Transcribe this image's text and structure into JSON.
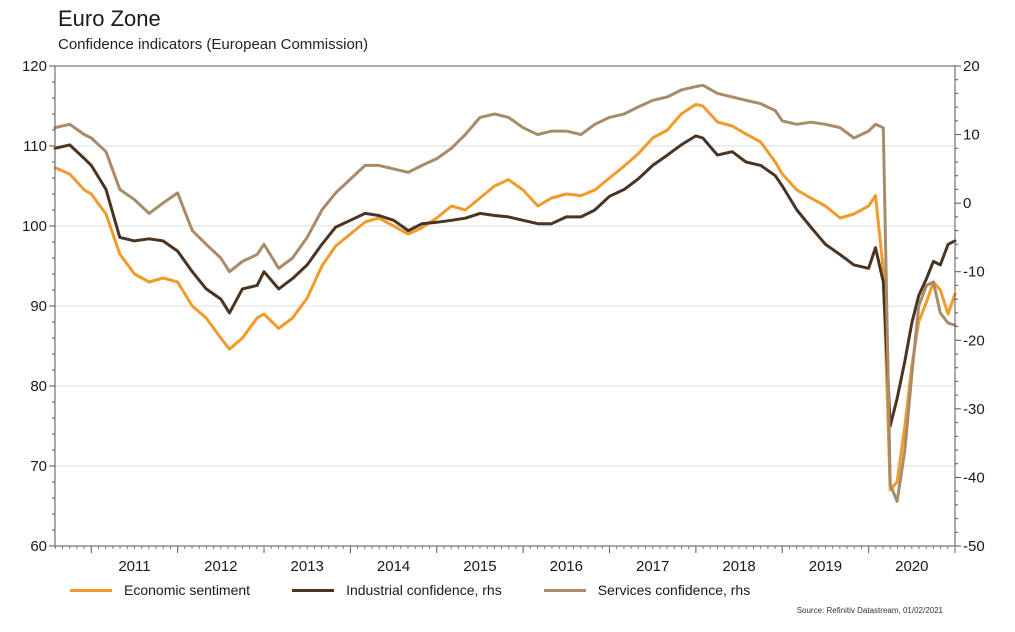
{
  "title": "Euro Zone",
  "subtitle": "Confidence indicators (European Commission)",
  "source": "Source: Refinitiv Datastream, 01/02/2021",
  "chart_data": {
    "type": "line",
    "title": "Euro Zone",
    "subtitle": "Confidence indicators (European Commission)",
    "x_ticks": [
      "2011",
      "2012",
      "2013",
      "2014",
      "2015",
      "2016",
      "2017",
      "2018",
      "2019",
      "2020"
    ],
    "x_range": [
      2010.58,
      2021.0
    ],
    "y_left": {
      "range": [
        60,
        120
      ],
      "ticks": [
        "60",
        "70",
        "80",
        "90",
        "100",
        "110",
        "120"
      ]
    },
    "y_right": {
      "range": [
        -50,
        20
      ],
      "ticks": [
        "-50",
        "-40",
        "-30",
        "-20",
        "-10",
        "0",
        "10",
        "20"
      ]
    },
    "grid": "horizontal",
    "legend_position": "bottom",
    "series": [
      {
        "name": "Economic sentiment",
        "axis": "left",
        "color": "#f39a2c",
        "points": [
          [
            2010.58,
            107.3
          ],
          [
            2010.75,
            106.5
          ],
          [
            2010.92,
            104.5
          ],
          [
            2011.0,
            104.0
          ],
          [
            2011.17,
            101.5
          ],
          [
            2011.33,
            96.5
          ],
          [
            2011.5,
            94.0
          ],
          [
            2011.67,
            93.0
          ],
          [
            2011.83,
            93.5
          ],
          [
            2012.0,
            93.0
          ],
          [
            2012.17,
            90.0
          ],
          [
            2012.33,
            88.5
          ],
          [
            2012.5,
            86.0
          ],
          [
            2012.6,
            84.6
          ],
          [
            2012.75,
            86.0
          ],
          [
            2012.92,
            88.5
          ],
          [
            2013.0,
            89.0
          ],
          [
            2013.17,
            87.2
          ],
          [
            2013.33,
            88.5
          ],
          [
            2013.5,
            91.0
          ],
          [
            2013.67,
            95.0
          ],
          [
            2013.83,
            97.5
          ],
          [
            2014.0,
            99.0
          ],
          [
            2014.17,
            100.5
          ],
          [
            2014.33,
            101.0
          ],
          [
            2014.5,
            100.0
          ],
          [
            2014.67,
            99.0
          ],
          [
            2014.83,
            99.8
          ],
          [
            2015.0,
            101.0
          ],
          [
            2015.17,
            102.5
          ],
          [
            2015.33,
            102.0
          ],
          [
            2015.5,
            103.5
          ],
          [
            2015.67,
            105.0
          ],
          [
            2015.83,
            105.8
          ],
          [
            2016.0,
            104.5
          ],
          [
            2016.17,
            102.5
          ],
          [
            2016.33,
            103.5
          ],
          [
            2016.5,
            104.0
          ],
          [
            2016.67,
            103.8
          ],
          [
            2016.83,
            104.5
          ],
          [
            2017.0,
            106.0
          ],
          [
            2017.17,
            107.5
          ],
          [
            2017.33,
            109.0
          ],
          [
            2017.5,
            111.0
          ],
          [
            2017.67,
            112.0
          ],
          [
            2017.83,
            114.0
          ],
          [
            2018.0,
            115.2
          ],
          [
            2018.08,
            115.0
          ],
          [
            2018.25,
            113.0
          ],
          [
            2018.42,
            112.5
          ],
          [
            2018.58,
            111.5
          ],
          [
            2018.75,
            110.5
          ],
          [
            2018.92,
            108.0
          ],
          [
            2019.0,
            106.5
          ],
          [
            2019.17,
            104.5
          ],
          [
            2019.33,
            103.5
          ],
          [
            2019.5,
            102.5
          ],
          [
            2019.67,
            101.0
          ],
          [
            2019.83,
            101.5
          ],
          [
            2020.0,
            102.5
          ],
          [
            2020.08,
            103.8
          ],
          [
            2020.17,
            94.5
          ],
          [
            2020.25,
            67.0
          ],
          [
            2020.33,
            68.0
          ],
          [
            2020.42,
            75.0
          ],
          [
            2020.5,
            82.5
          ],
          [
            2020.58,
            88.0
          ],
          [
            2020.67,
            90.5
          ],
          [
            2020.75,
            93.0
          ],
          [
            2020.83,
            92.0
          ],
          [
            2020.92,
            89.0
          ],
          [
            2021.0,
            91.5
          ]
        ]
      },
      {
        "name": "Industrial confidence, rhs",
        "axis": "right",
        "color": "#4a3524",
        "points": [
          [
            2010.58,
            8.0
          ],
          [
            2010.75,
            8.5
          ],
          [
            2010.92,
            6.5
          ],
          [
            2011.0,
            5.5
          ],
          [
            2011.17,
            2.0
          ],
          [
            2011.33,
            -5.0
          ],
          [
            2011.5,
            -5.5
          ],
          [
            2011.67,
            -5.2
          ],
          [
            2011.83,
            -5.5
          ],
          [
            2012.0,
            -7.0
          ],
          [
            2012.17,
            -10.0
          ],
          [
            2012.33,
            -12.5
          ],
          [
            2012.5,
            -14.0
          ],
          [
            2012.6,
            -16.0
          ],
          [
            2012.75,
            -12.5
          ],
          [
            2012.92,
            -12.0
          ],
          [
            2013.0,
            -10.0
          ],
          [
            2013.17,
            -12.5
          ],
          [
            2013.33,
            -11.0
          ],
          [
            2013.5,
            -9.0
          ],
          [
            2013.67,
            -6.0
          ],
          [
            2013.83,
            -3.5
          ],
          [
            2014.0,
            -2.5
          ],
          [
            2014.17,
            -1.5
          ],
          [
            2014.33,
            -1.8
          ],
          [
            2014.5,
            -2.5
          ],
          [
            2014.67,
            -4.0
          ],
          [
            2014.83,
            -3.0
          ],
          [
            2015.0,
            -2.8
          ],
          [
            2015.17,
            -2.5
          ],
          [
            2015.33,
            -2.2
          ],
          [
            2015.5,
            -1.5
          ],
          [
            2015.67,
            -1.8
          ],
          [
            2015.83,
            -2.0
          ],
          [
            2016.0,
            -2.5
          ],
          [
            2016.17,
            -3.0
          ],
          [
            2016.33,
            -3.0
          ],
          [
            2016.5,
            -2.0
          ],
          [
            2016.67,
            -2.0
          ],
          [
            2016.83,
            -1.0
          ],
          [
            2017.0,
            1.0
          ],
          [
            2017.17,
            2.0
          ],
          [
            2017.33,
            3.5
          ],
          [
            2017.5,
            5.5
          ],
          [
            2017.67,
            7.0
          ],
          [
            2017.83,
            8.5
          ],
          [
            2018.0,
            9.8
          ],
          [
            2018.08,
            9.5
          ],
          [
            2018.25,
            7.0
          ],
          [
            2018.42,
            7.5
          ],
          [
            2018.58,
            6.0
          ],
          [
            2018.75,
            5.5
          ],
          [
            2018.92,
            4.0
          ],
          [
            2019.0,
            2.5
          ],
          [
            2019.17,
            -1.0
          ],
          [
            2019.33,
            -3.5
          ],
          [
            2019.5,
            -6.0
          ],
          [
            2019.67,
            -7.5
          ],
          [
            2019.83,
            -9.0
          ],
          [
            2020.0,
            -9.5
          ],
          [
            2020.08,
            -6.5
          ],
          [
            2020.17,
            -11.5
          ],
          [
            2020.25,
            -32.5
          ],
          [
            2020.33,
            -28.5
          ],
          [
            2020.42,
            -23.0
          ],
          [
            2020.5,
            -17.5
          ],
          [
            2020.58,
            -13.5
          ],
          [
            2020.67,
            -11.0
          ],
          [
            2020.75,
            -8.5
          ],
          [
            2020.83,
            -9.0
          ],
          [
            2020.92,
            -6.0
          ],
          [
            2021.0,
            -5.5
          ]
        ]
      },
      {
        "name": "Services confidence, rhs",
        "axis": "right",
        "color": "#a88b6a",
        "points": [
          [
            2010.58,
            11.0
          ],
          [
            2010.75,
            11.5
          ],
          [
            2010.92,
            10.0
          ],
          [
            2011.0,
            9.5
          ],
          [
            2011.17,
            7.5
          ],
          [
            2011.33,
            2.0
          ],
          [
            2011.5,
            0.5
          ],
          [
            2011.67,
            -1.5
          ],
          [
            2011.83,
            0.0
          ],
          [
            2012.0,
            1.5
          ],
          [
            2012.17,
            -4.0
          ],
          [
            2012.33,
            -6.0
          ],
          [
            2012.5,
            -8.0
          ],
          [
            2012.6,
            -10.0
          ],
          [
            2012.75,
            -8.5
          ],
          [
            2012.92,
            -7.5
          ],
          [
            2013.0,
            -6.0
          ],
          [
            2013.17,
            -9.5
          ],
          [
            2013.33,
            -8.0
          ],
          [
            2013.5,
            -5.0
          ],
          [
            2013.67,
            -1.0
          ],
          [
            2013.83,
            1.5
          ],
          [
            2014.0,
            3.5
          ],
          [
            2014.17,
            5.5
          ],
          [
            2014.33,
            5.5
          ],
          [
            2014.5,
            5.0
          ],
          [
            2014.67,
            4.5
          ],
          [
            2014.83,
            5.5
          ],
          [
            2015.0,
            6.5
          ],
          [
            2015.17,
            8.0
          ],
          [
            2015.33,
            10.0
          ],
          [
            2015.5,
            12.5
          ],
          [
            2015.67,
            13.0
          ],
          [
            2015.83,
            12.5
          ],
          [
            2016.0,
            11.0
          ],
          [
            2016.17,
            10.0
          ],
          [
            2016.33,
            10.5
          ],
          [
            2016.5,
            10.5
          ],
          [
            2016.67,
            10.0
          ],
          [
            2016.83,
            11.5
          ],
          [
            2017.0,
            12.5
          ],
          [
            2017.17,
            13.0
          ],
          [
            2017.33,
            14.0
          ],
          [
            2017.5,
            15.0
          ],
          [
            2017.67,
            15.5
          ],
          [
            2017.83,
            16.5
          ],
          [
            2018.0,
            17.0
          ],
          [
            2018.08,
            17.2
          ],
          [
            2018.25,
            16.0
          ],
          [
            2018.42,
            15.5
          ],
          [
            2018.58,
            15.0
          ],
          [
            2018.75,
            14.5
          ],
          [
            2018.92,
            13.5
          ],
          [
            2019.0,
            12.0
          ],
          [
            2019.17,
            11.5
          ],
          [
            2019.33,
            11.8
          ],
          [
            2019.5,
            11.5
          ],
          [
            2019.67,
            11.0
          ],
          [
            2019.83,
            9.5
          ],
          [
            2020.0,
            10.5
          ],
          [
            2020.08,
            11.5
          ],
          [
            2020.17,
            11.0
          ],
          [
            2020.25,
            -41.0
          ],
          [
            2020.33,
            -43.5
          ],
          [
            2020.42,
            -36.0
          ],
          [
            2020.5,
            -25.0
          ],
          [
            2020.58,
            -15.0
          ],
          [
            2020.67,
            -12.0
          ],
          [
            2020.75,
            -11.5
          ],
          [
            2020.83,
            -16.0
          ],
          [
            2020.92,
            -17.5
          ],
          [
            2021.0,
            -17.8
          ]
        ]
      }
    ]
  }
}
